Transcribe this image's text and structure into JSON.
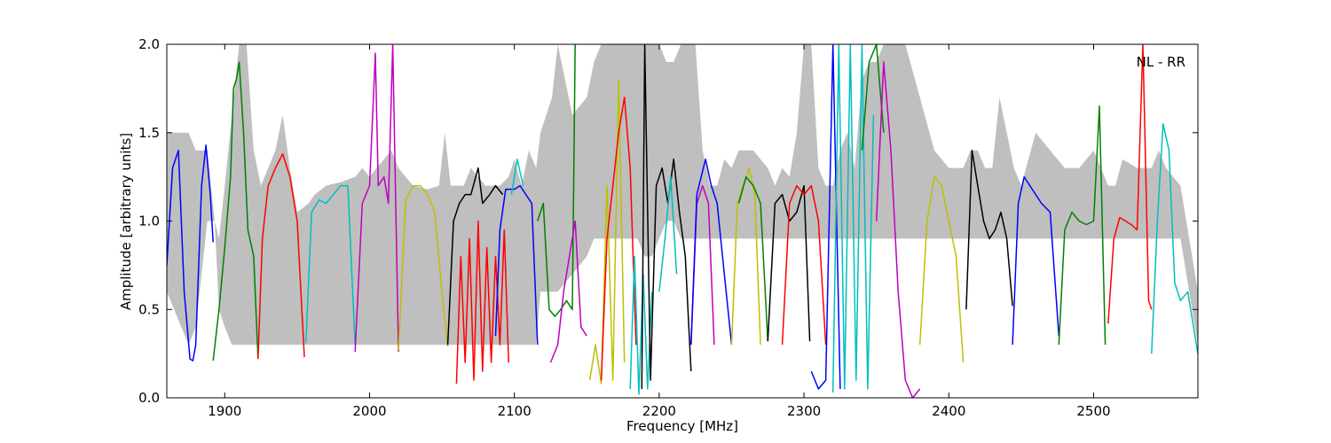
{
  "chart_data": {
    "type": "line",
    "title": "",
    "annotation": "NL - RR",
    "xlabel": "Frequency [MHz]",
    "ylabel": "Amplitude [arbitrary units]",
    "xlim": [
      1860,
      2572
    ],
    "ylim": [
      0.0,
      2.0
    ],
    "xticks": [
      1900,
      2000,
      2100,
      2200,
      2300,
      2400,
      2500
    ],
    "yticks": [
      0.0,
      0.5,
      1.0,
      1.5,
      2.0
    ],
    "xtick_labels": [
      "1900",
      "2000",
      "2100",
      "2200",
      "2300",
      "2400",
      "2500"
    ],
    "ytick_labels": [
      "0.0",
      "0.5",
      "1.0",
      "1.5",
      "2.0"
    ],
    "grid": false,
    "envelope_color": "#bfbfbf",
    "envelope": {
      "x": [
        1860,
        1875,
        1880,
        1888,
        1893,
        1896,
        1900,
        1905,
        1910,
        1915,
        1920,
        1925,
        1935,
        1940,
        1945,
        1950,
        1958,
        1962,
        1970,
        1980,
        1990,
        1995,
        2000,
        2005,
        2010,
        2015,
        2020,
        2030,
        2040,
        2048,
        2052,
        2056,
        2060,
        2065,
        2070,
        2080,
        2090,
        2096,
        2100,
        2105,
        2110,
        2115,
        2118,
        2122,
        2126,
        2130,
        2140,
        2150,
        2155,
        2160,
        2165,
        2170,
        2175,
        2180,
        2185,
        2190,
        2195,
        2200,
        2205,
        2210,
        2215,
        2220,
        2225,
        2230,
        2235,
        2240,
        2245,
        2250,
        2255,
        2260,
        2265,
        2270,
        2275,
        2280,
        2285,
        2290,
        2295,
        2300,
        2305,
        2310,
        2315,
        2320,
        2325,
        2330,
        2335,
        2340,
        2345,
        2350,
        2355,
        2360,
        2370,
        2380,
        2390,
        2400,
        2405,
        2410,
        2415,
        2420,
        2425,
        2430,
        2435,
        2440,
        2445,
        2450,
        2460,
        2470,
        2480,
        2490,
        2500,
        2505,
        2510,
        2515,
        2520,
        2530,
        2540,
        2545,
        2550,
        2560,
        2572
      ],
      "upper": [
        1.5,
        1.5,
        1.4,
        1.4,
        1.0,
        0.9,
        1.2,
        1.6,
        2.0,
        2.0,
        1.4,
        1.2,
        1.4,
        1.6,
        1.3,
        1.05,
        1.1,
        1.15,
        1.2,
        1.22,
        1.25,
        1.3,
        1.25,
        1.3,
        1.35,
        1.4,
        1.3,
        1.2,
        1.18,
        1.2,
        1.5,
        1.2,
        1.2,
        1.2,
        1.3,
        1.2,
        1.2,
        1.25,
        1.35,
        1.2,
        1.4,
        1.3,
        1.5,
        1.6,
        1.7,
        2.0,
        1.6,
        1.7,
        1.9,
        2.0,
        2.0,
        2.0,
        2.0,
        2.0,
        2.0,
        2.0,
        2.0,
        2.0,
        1.9,
        1.9,
        2.0,
        2.0,
        2.0,
        1.4,
        1.2,
        1.2,
        1.35,
        1.3,
        1.4,
        1.4,
        1.4,
        1.35,
        1.3,
        1.2,
        1.3,
        1.25,
        1.5,
        2.0,
        2.0,
        1.3,
        1.2,
        1.2,
        1.4,
        1.5,
        1.3,
        1.8,
        1.9,
        1.9,
        2.0,
        2.0,
        2.0,
        1.7,
        1.4,
        1.3,
        1.3,
        1.3,
        1.4,
        1.4,
        1.3,
        1.3,
        1.7,
        1.5,
        1.3,
        1.2,
        1.5,
        1.4,
        1.3,
        1.3,
        1.4,
        1.3,
        1.2,
        1.2,
        1.35,
        1.3,
        1.3,
        1.4,
        1.3,
        1.2,
        0.6
      ],
      "lower": [
        0.6,
        0.3,
        0.4,
        1.0,
        1.0,
        0.5,
        0.4,
        0.3,
        0.3,
        0.3,
        0.3,
        0.3,
        0.3,
        0.3,
        0.3,
        0.3,
        0.3,
        0.3,
        0.3,
        0.3,
        0.3,
        0.3,
        0.3,
        0.3,
        0.3,
        0.3,
        0.3,
        0.3,
        0.3,
        0.3,
        0.3,
        0.3,
        0.3,
        0.3,
        0.3,
        0.3,
        0.3,
        0.3,
        0.3,
        0.3,
        0.3,
        0.3,
        0.6,
        0.6,
        0.6,
        0.6,
        0.7,
        0.8,
        0.9,
        0.9,
        0.9,
        0.9,
        0.9,
        0.9,
        0.9,
        0.8,
        0.8,
        0.9,
        1.0,
        1.0,
        0.9,
        0.9,
        0.9,
        0.9,
        0.9,
        0.9,
        0.9,
        0.9,
        0.9,
        0.9,
        0.9,
        0.9,
        0.9,
        0.9,
        0.9,
        0.9,
        0.9,
        0.9,
        0.9,
        0.9,
        0.9,
        0.9,
        0.9,
        0.9,
        0.9,
        0.9,
        0.9,
        0.9,
        0.9,
        0.9,
        0.9,
        0.9,
        0.9,
        0.9,
        0.9,
        0.9,
        0.9,
        0.9,
        0.9,
        0.9,
        0.9,
        0.9,
        0.9,
        0.9,
        0.9,
        0.9,
        0.9,
        0.9,
        0.9,
        0.9,
        0.9,
        0.9,
        0.9,
        0.9,
        0.9,
        0.9,
        0.9,
        0.9,
        0.3
      ]
    },
    "series": [
      {
        "color": "#0000ff",
        "x": [
          1860,
          1864,
          1868,
          1872,
          1876,
          1878,
          1880,
          1884,
          1887,
          1890,
          1892
        ],
        "y": [
          0.75,
          1.3,
          1.4,
          0.6,
          0.22,
          0.21,
          0.3,
          1.2,
          1.43,
          1.15,
          0.88
        ]
      },
      {
        "color": "#008000",
        "x": [
          1892,
          1896,
          1900,
          1904,
          1906,
          1908,
          1910,
          1913,
          1916,
          1920,
          1923
        ],
        "y": [
          0.21,
          0.5,
          0.85,
          1.25,
          1.75,
          1.8,
          1.9,
          1.5,
          0.95,
          0.8,
          0.22
        ]
      },
      {
        "color": "#ff0000",
        "x": [
          1923,
          1926,
          1930,
          1935,
          1940,
          1945,
          1950,
          1955
        ],
        "y": [
          0.22,
          0.9,
          1.2,
          1.3,
          1.38,
          1.25,
          1.0,
          0.23
        ]
      },
      {
        "color": "#00bfbf",
        "x": [
          1956,
          1960,
          1965,
          1970,
          1975,
          1980,
          1985,
          1990
        ],
        "y": [
          0.31,
          1.05,
          1.12,
          1.1,
          1.15,
          1.2,
          1.2,
          0.3
        ]
      },
      {
        "color": "#bf00bf",
        "x": [
          1990,
          1995,
          2000,
          2004,
          2006,
          2010,
          2013,
          2016,
          2020
        ],
        "y": [
          0.26,
          1.1,
          1.2,
          1.95,
          1.2,
          1.25,
          1.1,
          2.0,
          0.26
        ]
      },
      {
        "color": "#bfbf00",
        "x": [
          2020,
          2025,
          2030,
          2035,
          2040,
          2045,
          2050,
          2054
        ],
        "y": [
          0.27,
          1.12,
          1.2,
          1.2,
          1.15,
          1.05,
          0.6,
          0.29
        ]
      },
      {
        "color": "#000000",
        "x": [
          2054,
          2058,
          2062,
          2066,
          2070,
          2075,
          2078,
          2083,
          2087,
          2092
        ],
        "y": [
          0.3,
          1.0,
          1.1,
          1.15,
          1.15,
          1.3,
          1.1,
          1.15,
          1.2,
          1.15
        ]
      },
      {
        "color": "#ff0000",
        "x": [
          2060,
          2063,
          2066,
          2069,
          2072,
          2075,
          2078,
          2081,
          2084,
          2087,
          2090,
          2093,
          2096
        ],
        "y": [
          0.08,
          0.8,
          0.2,
          0.9,
          0.1,
          1.0,
          0.15,
          0.85,
          0.2,
          0.8,
          0.3,
          0.95,
          0.2
        ]
      },
      {
        "color": "#0000ff",
        "x": [
          2087,
          2090,
          2094,
          2100,
          2104,
          2108,
          2112,
          2116
        ],
        "y": [
          0.35,
          0.95,
          1.18,
          1.18,
          1.2,
          1.15,
          1.1,
          0.3
        ]
      },
      {
        "color": "#00bfbf",
        "x": [
          2098,
          2102,
          2106
        ],
        "y": [
          1.15,
          1.35,
          1.2
        ]
      },
      {
        "color": "#008000",
        "x": [
          2116,
          2120,
          2124,
          2128,
          2132,
          2136,
          2140,
          2142
        ],
        "y": [
          1.0,
          1.1,
          0.5,
          0.46,
          0.5,
          0.55,
          0.5,
          2.0
        ]
      },
      {
        "color": "#bf00bf",
        "x": [
          2125,
          2130,
          2134,
          2138,
          2142,
          2146,
          2150
        ],
        "y": [
          0.2,
          0.3,
          0.6,
          0.8,
          1.0,
          0.4,
          0.35
        ]
      },
      {
        "color": "#bfbf00",
        "x": [
          2152,
          2156,
          2160,
          2164,
          2168,
          2172,
          2176
        ],
        "y": [
          0.1,
          0.3,
          0.08,
          1.2,
          0.1,
          1.8,
          0.2
        ]
      },
      {
        "color": "#ff0000",
        "x": [
          2160,
          2164,
          2168,
          2172,
          2176,
          2180,
          2184
        ],
        "y": [
          0.1,
          0.9,
          1.2,
          1.5,
          1.7,
          1.3,
          0.3
        ]
      },
      {
        "color": "#00bfbf",
        "x": [
          2180,
          2183,
          2186,
          2189,
          2192,
          2195
        ],
        "y": [
          0.05,
          0.8,
          0.02,
          0.7,
          0.05,
          0.6
        ]
      },
      {
        "color": "#000000",
        "x": [
          2188,
          2190,
          2194,
          2198,
          2202,
          2206,
          2210,
          2214,
          2218,
          2222
        ],
        "y": [
          0.05,
          2.0,
          0.1,
          1.2,
          1.3,
          1.1,
          1.35,
          1.05,
          0.8,
          0.15
        ]
      },
      {
        "color": "#00bfbf",
        "x": [
          2200,
          2204,
          2208,
          2212
        ],
        "y": [
          0.6,
          0.9,
          1.25,
          0.7
        ]
      },
      {
        "color": "#bf00bf",
        "x": [
          2222,
          2226,
          2230,
          2234,
          2238
        ],
        "y": [
          0.3,
          1.1,
          1.2,
          1.1,
          0.3
        ]
      },
      {
        "color": "#0000ff",
        "x": [
          2222,
          2226,
          2232,
          2236,
          2240,
          2245,
          2250
        ],
        "y": [
          0.3,
          1.15,
          1.35,
          1.2,
          1.1,
          0.7,
          0.3
        ]
      },
      {
        "color": "#bfbf00",
        "x": [
          2250,
          2254,
          2258,
          2262,
          2266,
          2270
        ],
        "y": [
          0.3,
          1.1,
          1.2,
          1.3,
          1.15,
          0.3
        ]
      },
      {
        "color": "#008000",
        "x": [
          2255,
          2260,
          2265,
          2270,
          2275
        ],
        "y": [
          1.1,
          1.25,
          1.2,
          1.1,
          0.32
        ]
      },
      {
        "color": "#000000",
        "x": [
          2275,
          2280,
          2285,
          2290,
          2295,
          2300,
          2304
        ],
        "y": [
          0.32,
          1.1,
          1.15,
          1.0,
          1.05,
          1.2,
          0.32
        ]
      },
      {
        "color": "#ff0000",
        "x": [
          2285,
          2290,
          2295,
          2300,
          2305,
          2310,
          2315
        ],
        "y": [
          0.3,
          1.1,
          1.2,
          1.15,
          1.2,
          1.0,
          0.3
        ]
      },
      {
        "color": "#0000ff",
        "x": [
          2305,
          2310,
          2315,
          2320,
          2325
        ],
        "y": [
          0.15,
          0.05,
          0.1,
          2.0,
          0.05
        ]
      },
      {
        "color": "#00bfbf",
        "x": [
          2320,
          2324,
          2328,
          2332,
          2336,
          2340,
          2344,
          2348
        ],
        "y": [
          0.03,
          2.0,
          0.05,
          2.0,
          0.1,
          2.0,
          0.05,
          1.6
        ]
      },
      {
        "color": "#008000",
        "x": [
          2340,
          2345,
          2350,
          2355
        ],
        "y": [
          1.4,
          1.9,
          2.0,
          1.5
        ]
      },
      {
        "color": "#bf00bf",
        "x": [
          2350,
          2355,
          2360,
          2365,
          2370,
          2375,
          2380
        ],
        "y": [
          1.0,
          1.9,
          1.4,
          0.6,
          0.1,
          0.0,
          0.05
        ]
      },
      {
        "color": "#bfbf00",
        "x": [
          2380,
          2385,
          2390,
          2395,
          2400,
          2405,
          2410
        ],
        "y": [
          0.3,
          1.0,
          1.25,
          1.2,
          1.0,
          0.8,
          0.2
        ]
      },
      {
        "color": "#000000",
        "x": [
          2412,
          2416,
          2420,
          2424,
          2428,
          2432,
          2436,
          2440,
          2444
        ],
        "y": [
          0.5,
          1.4,
          1.2,
          1.0,
          0.9,
          0.95,
          1.05,
          0.9,
          0.52
        ]
      },
      {
        "color": "#0000ff",
        "x": [
          2444,
          2448,
          2452,
          2456,
          2460,
          2464,
          2470,
          2476
        ],
        "y": [
          0.3,
          1.1,
          1.25,
          1.2,
          1.15,
          1.1,
          1.05,
          0.35
        ]
      },
      {
        "color": "#008000",
        "x": [
          2476,
          2480,
          2485,
          2490,
          2495,
          2500,
          2504,
          2508
        ],
        "y": [
          0.3,
          0.95,
          1.05,
          1.0,
          0.98,
          1.0,
          1.65,
          0.3
        ]
      },
      {
        "color": "#ff0000",
        "x": [
          2510,
          2514,
          2518,
          2522,
          2526,
          2530,
          2534,
          2538,
          2540
        ],
        "y": [
          0.42,
          0.9,
          1.02,
          1.0,
          0.98,
          0.95,
          2.0,
          0.55,
          0.5
        ]
      },
      {
        "color": "#00bfbf",
        "x": [
          2540,
          2544,
          2548,
          2552,
          2556,
          2560,
          2565,
          2572
        ],
        "y": [
          0.25,
          1.0,
          1.55,
          1.4,
          0.65,
          0.55,
          0.6,
          0.25
        ]
      }
    ]
  }
}
